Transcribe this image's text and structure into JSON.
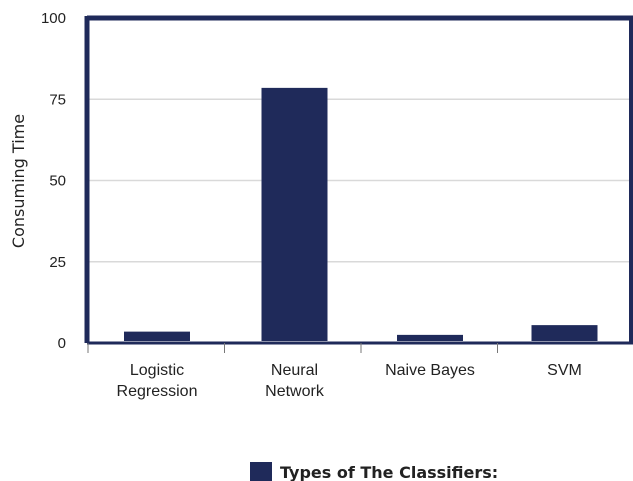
{
  "chart_data": {
    "type": "bar",
    "categories": [
      [
        "Logistic",
        "Regression"
      ],
      [
        "Neural",
        "Network"
      ],
      [
        "Naive Bayes"
      ],
      [
        "SVM"
      ]
    ],
    "values": [
      3.5,
      78.5,
      2.5,
      5.5
    ],
    "ylabel": "Consuming Time",
    "xlabel": "",
    "ylim": [
      0,
      100
    ],
    "yticks": [
      "0",
      "25",
      "50",
      "75",
      "100"
    ],
    "legend": {
      "label": "Types of The Classifiers:",
      "position": "bottom-center"
    },
    "grid": true,
    "colors": {
      "bar": "#1f2a5a",
      "frame": "#1f2a5a",
      "grid": "#d9d9d9"
    }
  }
}
